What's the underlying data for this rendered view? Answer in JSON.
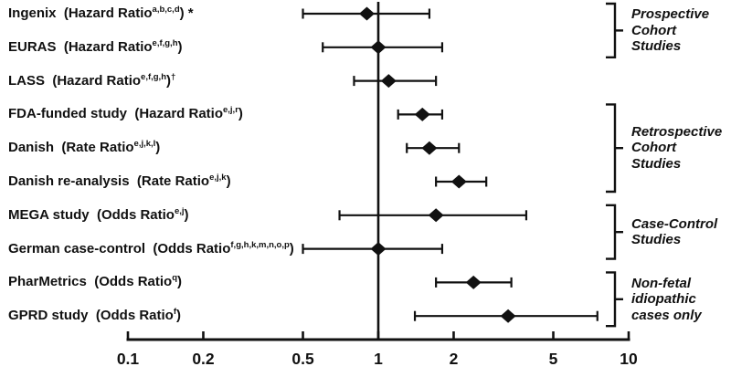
{
  "figure": {
    "kind": "forest-plot",
    "background_color": "#ffffff",
    "ink_color": "#111111"
  },
  "chart_data": {
    "type": "scatter",
    "subtype": "forest-plot",
    "title": "",
    "xlabel": "",
    "ylabel": "",
    "x_axis": {
      "scale": "log",
      "range": [
        0.1,
        10
      ],
      "ticks": [
        0.1,
        0.2,
        0.5,
        1,
        2,
        5,
        10
      ],
      "tick_labels": [
        "0.1",
        "0.2",
        "0.5",
        "1",
        "2",
        "5",
        "10"
      ],
      "reference_line_at": 1,
      "grid": false
    },
    "studies": [
      {
        "name": "Ingenix",
        "measure": "Hazard Ratio",
        "footnotes": "a,b,c,d",
        "mark": "*",
        "estimate": 0.9,
        "ci_low": 0.5,
        "ci_high": 1.6
      },
      {
        "name": "EURAS",
        "measure": "Hazard Ratio",
        "footnotes": "e,f,g,h",
        "mark": "",
        "estimate": 1.0,
        "ci_low": 0.6,
        "ci_high": 1.8
      },
      {
        "name": "LASS",
        "measure": "Hazard Ratio",
        "footnotes": "e,f,g,h",
        "mark": "†",
        "estimate": 1.1,
        "ci_low": 0.8,
        "ci_high": 1.7
      },
      {
        "name": "FDA-funded study",
        "measure": "Hazard Ratio",
        "footnotes": "e,j,r",
        "mark": "",
        "estimate": 1.5,
        "ci_low": 1.2,
        "ci_high": 1.8
      },
      {
        "name": "Danish",
        "measure": "Rate Ratio",
        "footnotes": "e,j,k,l",
        "mark": "",
        "estimate": 1.6,
        "ci_low": 1.3,
        "ci_high": 2.1
      },
      {
        "name": "Danish re-analysis",
        "measure": "Rate Ratio",
        "footnotes": "e,j,k",
        "mark": "",
        "estimate": 2.1,
        "ci_low": 1.7,
        "ci_high": 2.7
      },
      {
        "name": "MEGA study",
        "measure": "Odds Ratio",
        "footnotes": "e,j",
        "mark": "",
        "estimate": 1.7,
        "ci_low": 0.7,
        "ci_high": 3.9
      },
      {
        "name": "German case-control",
        "measure": "Odds Ratio",
        "footnotes": "f,g,h,k,m,n,o,p",
        "mark": "",
        "estimate": 1.0,
        "ci_low": 0.5,
        "ci_high": 1.8
      },
      {
        "name": "PharMetrics",
        "measure": "Odds Ratio",
        "footnotes": "q",
        "mark": "",
        "estimate": 2.4,
        "ci_low": 1.7,
        "ci_high": 3.4
      },
      {
        "name": "GPRD study",
        "measure": "Odds Ratio",
        "footnotes": "f",
        "mark": "",
        "estimate": 3.3,
        "ci_low": 1.4,
        "ci_high": 7.5
      }
    ],
    "groups": [
      {
        "label_lines": [
          "Prospective",
          "Cohort",
          "Studies"
        ],
        "first_study_index": 0,
        "last_study_index": 1
      },
      {
        "label_lines": [
          "Retrospective",
          "Cohort",
          "Studies"
        ],
        "first_study_index": 3,
        "last_study_index": 5
      },
      {
        "label_lines": [
          "Case-Control",
          "Studies"
        ],
        "first_study_index": 6,
        "last_study_index": 7
      },
      {
        "label_lines": [
          "Non-fetal",
          "idiopathic",
          "cases only"
        ],
        "first_study_index": 8,
        "last_study_index": 9
      }
    ],
    "legend": null,
    "notes": "Point estimates shown as filled diamonds with horizontal 95% CI whiskers; vertical reference line at 1; right-hand brackets group studies by design."
  }
}
